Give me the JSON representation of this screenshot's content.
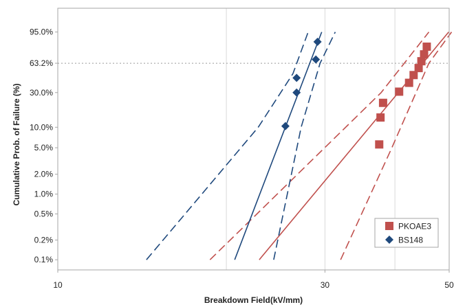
{
  "chart_data": {
    "type": "scatter",
    "xlabel": "Breakdown Field(kV/mm)",
    "ylabel": "Cumulative Prob. of Failure (%)",
    "x_scale": "log",
    "y_scale": "weibull",
    "xlim": [
      10,
      50
    ],
    "x_ticks": [
      10,
      30,
      50
    ],
    "y_ticks": [
      0.1,
      0.2,
      0.5,
      1.0,
      2.0,
      5.0,
      10.0,
      30.0,
      63.2,
      95.0
    ],
    "y_tick_labels": [
      "0.1%",
      "0.2%",
      "0.5%",
      "1.0%",
      "2.0%",
      "5.0%",
      "10.0%",
      "30.0%",
      "63.2%",
      "95.0%"
    ],
    "ylim": [
      0.07,
      99.9
    ],
    "reference_line": {
      "y": 63.2,
      "style": "dotted"
    },
    "grid": "vertical",
    "legend_position": "bottom-right",
    "series": [
      {
        "name": "PKOAE3",
        "color": "#c0504d",
        "marker": "square",
        "points": [
          [
            37.5,
            5.6
          ],
          [
            37.7,
            13.8
          ],
          [
            38.1,
            22.0
          ],
          [
            40.7,
            30.8
          ],
          [
            42.4,
            39.5
          ],
          [
            43.2,
            48.3
          ],
          [
            44.1,
            57.0
          ],
          [
            44.6,
            65.8
          ],
          [
            45.1,
            74.5
          ],
          [
            45.6,
            83.3
          ]
        ],
        "fit_line": [
          [
            22.9,
            0.1
          ],
          [
            49.9,
            95.0
          ]
        ],
        "confidence_bounds": [
          [
            [
              18.7,
              0.1
            ],
            [
              37.8,
              30.0
            ],
            [
              46.0,
              95.0
            ]
          ],
          [
            [
              32.0,
              0.1
            ],
            [
              39.5,
              5.0
            ],
            [
              46.0,
              63.2
            ],
            [
              50.5,
              95.0
            ]
          ]
        ]
      },
      {
        "name": "BS148",
        "color": "#1f497d",
        "marker": "diamond",
        "points": [
          [
            25.5,
            10.4
          ],
          [
            26.7,
            30.0
          ],
          [
            26.7,
            45.0
          ],
          [
            28.9,
            68.0
          ],
          [
            29.1,
            88.0
          ]
        ],
        "fit_line": [
          [
            20.7,
            0.1
          ],
          [
            29.6,
            95.0
          ]
        ],
        "confidence_bounds": [
          [
            [
              14.4,
              0.1
            ],
            [
              22.8,
              10.0
            ],
            [
              26.3,
              50.0
            ],
            [
              28.0,
              95.0
            ]
          ],
          [
            [
              24.3,
              0.1
            ],
            [
              27.2,
              10.0
            ],
            [
              29.4,
              63.2
            ],
            [
              31.3,
              95.0
            ]
          ]
        ]
      }
    ]
  }
}
